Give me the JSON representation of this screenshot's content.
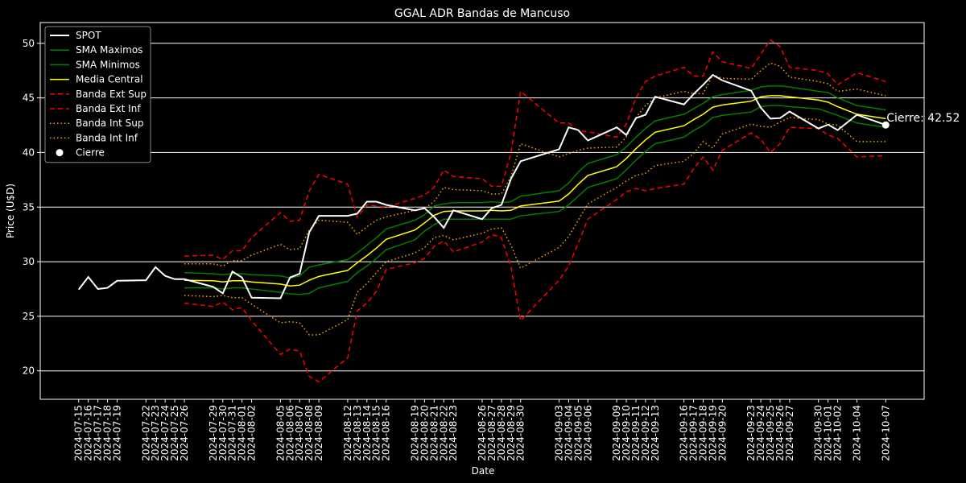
{
  "chart_data": {
    "type": "line",
    "title": "GGAL ADR Bandas de Mancuso",
    "x_label": "Date",
    "y_label": "Price (U$D)",
    "x": [
      "2024-07-15",
      "2024-07-16",
      "2024-07-17",
      "2024-07-18",
      "2024-07-19",
      "2024-07-22",
      "2024-07-23",
      "2024-07-24",
      "2024-07-25",
      "2024-07-26",
      "2024-07-29",
      "2024-07-30",
      "2024-07-31",
      "2024-08-01",
      "2024-08-02",
      "2024-08-05",
      "2024-08-06",
      "2024-08-07",
      "2024-08-08",
      "2024-08-09",
      "2024-08-12",
      "2024-08-13",
      "2024-08-14",
      "2024-08-15",
      "2024-08-16",
      "2024-08-19",
      "2024-08-20",
      "2024-08-21",
      "2024-08-22",
      "2024-08-23",
      "2024-08-26",
      "2024-08-27",
      "2024-08-28",
      "2024-08-29",
      "2024-08-30",
      "2024-09-03",
      "2024-09-04",
      "2024-09-05",
      "2024-09-06",
      "2024-09-09",
      "2024-09-10",
      "2024-09-11",
      "2024-09-12",
      "2024-09-13",
      "2024-09-16",
      "2024-09-17",
      "2024-09-18",
      "2024-09-19",
      "2024-09-20",
      "2024-09-23",
      "2024-09-24",
      "2024-09-25",
      "2024-09-26",
      "2024-09-27",
      "2024-09-30",
      "2024-10-01",
      "2024-10-02",
      "2024-10-04",
      "2024-10-07"
    ],
    "xlim": [
      "2024-07-11",
      "2024-10-11"
    ],
    "ylim": [
      17.4,
      51.9
    ],
    "yticks": [
      20,
      25,
      30,
      35,
      40,
      45,
      50
    ],
    "grid": "y",
    "legend": "upper left",
    "series": [
      {
        "name": "SPOT",
        "color": "#ffffff",
        "style": "solid",
        "width": 2,
        "values": [
          27.45,
          28.6,
          27.5,
          27.6,
          28.25,
          28.3,
          29.5,
          28.7,
          28.4,
          28.4,
          27.7,
          27.1,
          29.1,
          28.55,
          26.7,
          26.65,
          28.55,
          28.9,
          32.7,
          34.2,
          34.2,
          34.4,
          35.5,
          35.5,
          35.2,
          34.7,
          34.9,
          34.1,
          33.1,
          34.7,
          33.9,
          34.9,
          35.2,
          37.6,
          39.2,
          40.3,
          42.3,
          42.05,
          41.1,
          42.3,
          41.6,
          43.15,
          43.45,
          45.1,
          44.4,
          45.35,
          46.2,
          47.1,
          46.6,
          45.65,
          44.1,
          43.1,
          43.15,
          43.75,
          42.2,
          42.55,
          42.05,
          43.45,
          42.52
        ]
      },
      {
        "name": "SMA Maximos",
        "color": "#008000",
        "style": "solid",
        "width": 1.5,
        "values": [
          null,
          null,
          null,
          null,
          null,
          null,
          null,
          null,
          null,
          29.0,
          28.9,
          28.8,
          28.9,
          28.9,
          28.8,
          28.7,
          28.5,
          28.7,
          29.5,
          29.7,
          30.2,
          30.8,
          31.5,
          32.2,
          33.0,
          33.8,
          34.3,
          35.1,
          35.3,
          35.4,
          35.4,
          35.5,
          35.4,
          35.5,
          36.0,
          36.5,
          37.2,
          38.2,
          39.0,
          39.8,
          40.5,
          41.4,
          42.2,
          42.9,
          43.5,
          44.0,
          44.5,
          45.1,
          45.3,
          45.7,
          46.0,
          46.1,
          46.1,
          46.0,
          45.6,
          45.5,
          45.0,
          44.3,
          43.9
        ]
      },
      {
        "name": "SMA Minimos",
        "color": "#008000",
        "style": "solid",
        "width": 1.5,
        "values": [
          null,
          null,
          null,
          null,
          null,
          null,
          null,
          null,
          null,
          27.6,
          27.6,
          27.5,
          27.6,
          27.6,
          27.5,
          27.2,
          27.05,
          27.0,
          27.1,
          27.6,
          28.2,
          29.0,
          29.6,
          30.3,
          31.1,
          32.0,
          32.8,
          33.4,
          33.9,
          33.9,
          33.9,
          33.9,
          33.9,
          33.9,
          34.2,
          34.6,
          35.2,
          36.0,
          36.8,
          37.6,
          38.4,
          39.3,
          40.1,
          40.8,
          41.4,
          42.0,
          42.5,
          43.2,
          43.4,
          43.7,
          44.2,
          44.3,
          44.3,
          44.2,
          44.0,
          43.7,
          43.4,
          42.7,
          42.3
        ]
      },
      {
        "name": "Media Central",
        "color": "#ffff00",
        "style": "solid",
        "width": 1.5,
        "values": [
          null,
          null,
          null,
          null,
          null,
          null,
          null,
          null,
          null,
          28.3,
          28.25,
          28.15,
          28.25,
          28.25,
          28.15,
          27.95,
          27.78,
          27.85,
          28.3,
          28.65,
          29.2,
          29.9,
          30.55,
          31.25,
          32.05,
          32.9,
          33.55,
          34.25,
          34.6,
          34.65,
          34.65,
          34.7,
          34.65,
          34.7,
          35.1,
          35.55,
          36.2,
          37.1,
          37.9,
          38.7,
          39.45,
          40.35,
          41.15,
          41.85,
          42.45,
          43.0,
          43.5,
          44.15,
          44.35,
          44.7,
          45.1,
          45.2,
          45.2,
          45.1,
          44.8,
          44.6,
          44.2,
          43.5,
          43.1
        ]
      },
      {
        "name": "Banda Ext Sup",
        "color": "#ff0000",
        "style": "dashed",
        "width": 1.5,
        "values": [
          null,
          null,
          null,
          null,
          null,
          null,
          null,
          null,
          null,
          30.5,
          30.6,
          30.2,
          31.0,
          31.0,
          32.2,
          34.5,
          33.7,
          33.8,
          36.5,
          38.0,
          37.1,
          34.1,
          35.2,
          35.1,
          35.0,
          35.8,
          36.1,
          36.8,
          38.4,
          37.8,
          37.6,
          36.9,
          36.9,
          40.0,
          45.6,
          42.7,
          42.7,
          42.0,
          41.9,
          41.4,
          42.6,
          45.0,
          46.5,
          47.0,
          47.8,
          47.0,
          47.0,
          49.2,
          48.3,
          47.7,
          49.0,
          50.3,
          49.7,
          47.8,
          47.5,
          47.2,
          46.2,
          47.3,
          46.5
        ]
      },
      {
        "name": "Banda Ext Inf",
        "color": "#ff0000",
        "style": "dashed",
        "width": 1.5,
        "values": [
          null,
          null,
          null,
          null,
          null,
          null,
          null,
          null,
          null,
          26.2,
          25.9,
          26.3,
          25.6,
          25.8,
          24.6,
          21.5,
          22.0,
          21.8,
          19.5,
          19.0,
          21.2,
          25.5,
          26.2,
          27.3,
          29.3,
          29.9,
          30.3,
          31.4,
          31.9,
          30.9,
          31.8,
          32.5,
          32.2,
          29.5,
          24.6,
          28.3,
          29.6,
          31.7,
          33.9,
          35.7,
          36.4,
          36.7,
          36.5,
          36.7,
          37.1,
          38.5,
          39.6,
          38.4,
          40.2,
          41.8,
          41.2,
          40.0,
          40.8,
          42.3,
          42.2,
          41.6,
          41.3,
          39.6,
          39.7
        ]
      },
      {
        "name": "Banda Int Sup",
        "color": "#ffa500",
        "style": "dotted",
        "width": 1.5,
        "values": [
          null,
          null,
          null,
          null,
          null,
          null,
          null,
          null,
          null,
          29.8,
          29.8,
          29.6,
          30.1,
          30.1,
          30.6,
          31.6,
          31.1,
          31.2,
          32.9,
          33.8,
          33.6,
          32.5,
          33.2,
          33.8,
          34.1,
          34.7,
          34.9,
          35.5,
          36.8,
          36.6,
          36.5,
          36.2,
          36.2,
          37.8,
          40.8,
          39.6,
          39.9,
          40.2,
          40.4,
          40.5,
          41.4,
          43.2,
          44.3,
          45.0,
          45.6,
          45.4,
          45.4,
          47.1,
          46.8,
          46.7,
          47.5,
          48.2,
          47.9,
          46.9,
          46.5,
          46.3,
          45.6,
          45.8,
          45.2
        ]
      },
      {
        "name": "Banda Int Inf",
        "color": "#ffa500",
        "style": "dotted",
        "width": 1.5,
        "values": [
          null,
          null,
          null,
          null,
          null,
          null,
          null,
          null,
          null,
          26.9,
          26.8,
          26.9,
          26.7,
          26.7,
          26.1,
          24.4,
          24.5,
          24.4,
          23.3,
          23.3,
          24.7,
          27.2,
          28.0,
          29.0,
          30.0,
          30.8,
          31.3,
          32.2,
          32.4,
          32.0,
          32.6,
          33.0,
          33.1,
          31.5,
          29.4,
          31.3,
          32.3,
          33.8,
          35.3,
          36.8,
          37.4,
          37.9,
          38.1,
          38.8,
          39.2,
          39.9,
          41.0,
          40.4,
          41.7,
          42.6,
          42.4,
          42.3,
          42.8,
          43.2,
          43.0,
          42.6,
          42.5,
          41.0,
          41.0
        ]
      }
    ],
    "close_point": {
      "name": "Cierre",
      "x": "2024-10-07",
      "value": 42.52,
      "label": "Cierre: 42.52",
      "color": "#ffffff"
    }
  }
}
